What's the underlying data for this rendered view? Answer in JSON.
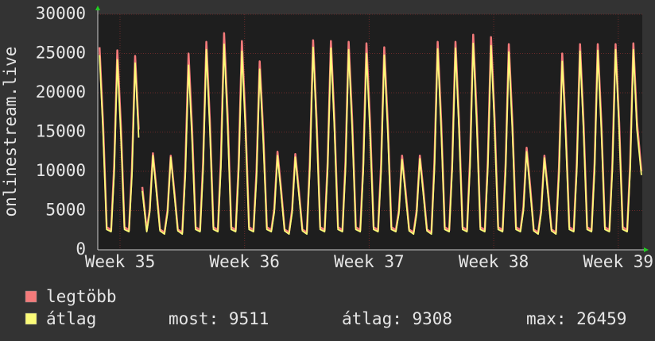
{
  "chart_data": {
    "type": "line",
    "y_label": "onlinestream.live",
    "x": [
      0.1,
      0.3,
      0.5,
      0.75,
      0.92,
      1.1,
      1.3,
      1.5,
      1.75,
      1.92,
      2.1,
      2.3,
      2.4,
      2.5,
      2.75,
      2.92,
      3.1,
      3.3,
      3.5,
      3.75,
      3.92,
      4.1,
      4.3,
      4.5,
      4.75,
      4.92,
      5.1,
      5.3,
      5.5,
      5.75,
      5.92,
      6.1,
      6.3,
      6.5,
      6.75,
      6.92,
      7.1,
      7.3,
      7.5,
      7.75,
      7.92,
      8.1,
      8.3,
      8.5,
      8.75,
      8.92,
      9.1,
      9.3,
      9.5,
      9.75,
      9.92,
      10.1,
      10.3,
      10.5,
      10.75,
      10.92,
      11.1,
      11.3,
      11.5,
      11.75,
      11.92,
      12.1,
      12.3,
      12.5,
      12.75,
      12.92,
      13.1,
      13.3,
      13.5,
      13.75,
      13.92,
      14.1,
      14.3,
      14.5,
      14.75,
      14.92,
      15.1,
      15.3,
      15.5,
      15.75,
      15.92,
      16.1,
      16.3,
      16.5,
      16.75,
      16.92,
      17.1,
      17.3,
      17.5,
      17.75,
      17.92,
      18.1,
      18.3,
      18.5,
      18.75,
      18.92,
      19.1,
      19.3,
      19.5,
      19.75,
      19.92,
      20.1,
      20.3,
      20.5,
      20.75,
      20.92,
      21.1,
      21.3,
      21.5,
      21.75,
      21.92,
      22.1,
      22.3,
      22.5,
      22.75,
      22.92,
      23.1,
      23.3,
      23.5,
      23.75,
      23.92,
      24.1,
      24.3,
      24.5,
      24.75,
      24.92,
      25.1,
      25.3,
      25.5,
      25.75,
      25.92,
      26.1,
      26.3,
      26.5,
      26.75,
      26.92,
      27.1,
      27.3,
      27.5,
      27.75,
      27.92,
      28.1,
      28.3,
      28.5,
      28.75,
      28.92,
      29.1,
      29.3,
      29.5,
      29.75,
      29.92,
      30.1,
      30.3,
      30.55
    ],
    "series": [
      {
        "name": "legtöbb",
        "color": "#f47a7a",
        "values": [
          25800,
          16000,
          2900,
          2500,
          10670,
          25400,
          15750,
          2900,
          2500,
          10370,
          24700,
          15310,
          null,
          8000,
          2500,
          5170,
          12300,
          7630,
          2600,
          2200,
          5040,
          12000,
          7440,
          2600,
          2200,
          10500,
          25000,
          15500,
          2900,
          2500,
          11130,
          26500,
          16430,
          2900,
          2500,
          11590,
          27600,
          17110,
          2900,
          2500,
          11170,
          26600,
          16490,
          2900,
          2500,
          10080,
          24000,
          14880,
          2900,
          2500,
          5250,
          12500,
          7750,
          2600,
          2200,
          5120,
          12200,
          7560,
          2600,
          2200,
          11210,
          26700,
          16550,
          2900,
          2500,
          11170,
          26600,
          16490,
          2900,
          2500,
          11130,
          26500,
          16430,
          2900,
          2500,
          11050,
          26300,
          16310,
          2900,
          2500,
          10840,
          25800,
          16000,
          2900,
          2500,
          5040,
          12000,
          7440,
          2600,
          2200,
          5040,
          12000,
          7440,
          2600,
          2200,
          11130,
          26500,
          16430,
          2900,
          2500,
          11130,
          26500,
          16430,
          2900,
          2500,
          11510,
          27400,
          16990,
          2900,
          2500,
          11380,
          27100,
          16800,
          2900,
          2500,
          11000,
          26200,
          16240,
          2900,
          2500,
          5460,
          13000,
          8060,
          2600,
          2200,
          5040,
          12000,
          7440,
          2600,
          2200,
          10500,
          25000,
          15500,
          2900,
          2500,
          11000,
          26200,
          16240,
          2900,
          2500,
          11000,
          26200,
          16240,
          2900,
          2500,
          11000,
          26200,
          16240,
          2900,
          2500,
          11050,
          26300,
          16310,
          10000
        ]
      },
      {
        "name": "átlag",
        "color": "#fbfb78",
        "values": [
          24800,
          14880,
          2600,
          2300,
          9680,
          24200,
          14520,
          2600,
          2300,
          9520,
          23800,
          14280,
          null,
          7500,
          2300,
          4800,
          12000,
          7200,
          2400,
          2000,
          4720,
          11800,
          7080,
          2400,
          2000,
          9400,
          23500,
          14100,
          2600,
          2300,
          10200,
          25500,
          15300,
          2600,
          2300,
          10480,
          26200,
          15720,
          2600,
          2300,
          10120,
          25300,
          15180,
          2600,
          2300,
          9200,
          23000,
          13800,
          2600,
          2300,
          4800,
          12000,
          7200,
          2400,
          2000,
          4720,
          11800,
          7080,
          2400,
          2000,
          10320,
          25800,
          15480,
          2600,
          2300,
          10280,
          25700,
          15420,
          2600,
          2300,
          10200,
          25500,
          15300,
          2600,
          2300,
          10000,
          25000,
          15000,
          2600,
          2300,
          9920,
          24800,
          14880,
          2600,
          2300,
          4600,
          11500,
          6900,
          2400,
          2000,
          4640,
          11600,
          6960,
          2400,
          2000,
          10240,
          25600,
          15360,
          2600,
          2300,
          10280,
          25700,
          15420,
          2600,
          2300,
          10520,
          26300,
          15780,
          2600,
          2300,
          10400,
          26000,
          15600,
          2600,
          2300,
          10080,
          25200,
          15120,
          2600,
          2300,
          5000,
          12500,
          7500,
          2400,
          2000,
          4680,
          11700,
          7020,
          2400,
          2000,
          9600,
          24000,
          14400,
          2600,
          2300,
          10120,
          25300,
          15180,
          2600,
          2300,
          10160,
          25400,
          15240,
          2600,
          2300,
          10200,
          25500,
          15300,
          2600,
          2300,
          10200,
          25500,
          15300,
          9511
        ]
      }
    ],
    "xlim": [
      0,
      30.6
    ],
    "xticks": [
      {
        "value": 1.25,
        "label": "Week 35"
      },
      {
        "value": 8.25,
        "label": "Week 36"
      },
      {
        "value": 15.25,
        "label": "Week 37"
      },
      {
        "value": 22.25,
        "label": "Week 38"
      },
      {
        "value": 29.25,
        "label": "Week 39"
      }
    ],
    "ylim": [
      0,
      30000
    ],
    "yticks": [
      0,
      5000,
      10000,
      15000,
      20000,
      25000,
      30000
    ],
    "grid": true,
    "stats": [
      {
        "label": "most:",
        "value": 9511
      },
      {
        "label": "átlag:",
        "value": 9308
      },
      {
        "label": "max:",
        "value": 26459
      }
    ]
  }
}
